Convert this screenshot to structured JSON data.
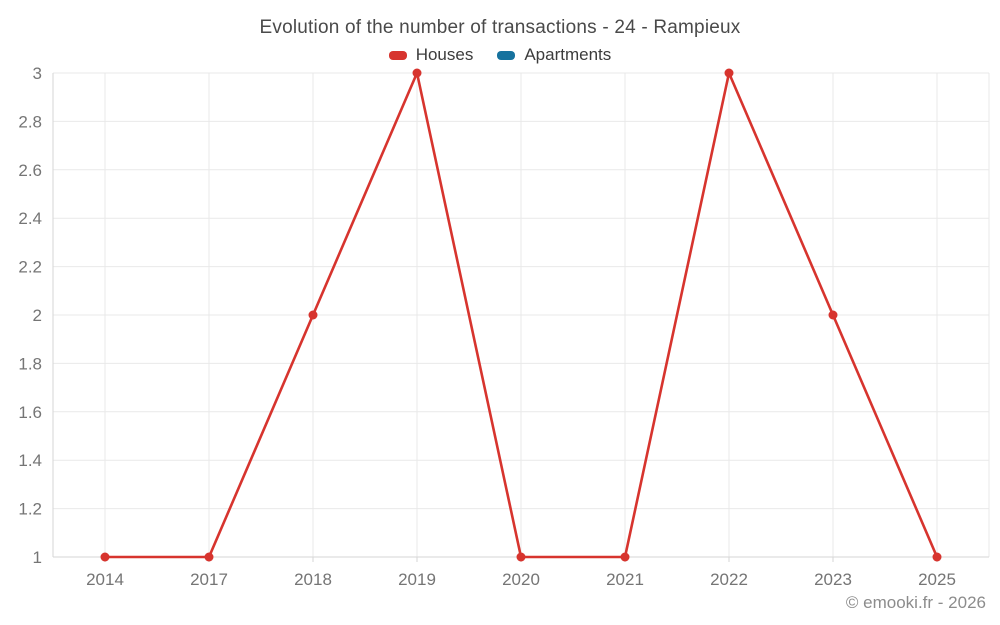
{
  "chart_data": {
    "type": "line",
    "title": "Evolution of the number of transactions - 24 - Rampieux",
    "categories": [
      "2014",
      "2017",
      "2018",
      "2019",
      "2020",
      "2021",
      "2022",
      "2023",
      "2025"
    ],
    "series": [
      {
        "name": "Houses",
        "color": "#d7342e",
        "values": [
          1,
          1,
          2,
          3,
          1,
          1,
          3,
          2,
          1
        ]
      },
      {
        "name": "Apartments",
        "color": "#16729e",
        "values": []
      }
    ],
    "ylim": [
      1,
      3
    ],
    "ytick_step": 0.2,
    "ytick_labels": [
      "1",
      "1.2",
      "1.4",
      "1.6",
      "1.8",
      "2",
      "2.2",
      "2.4",
      "2.6",
      "2.8",
      "3"
    ],
    "xlabel": "",
    "ylabel": "",
    "grid": true,
    "legend_position": "top"
  },
  "footer": {
    "credit": "© emooki.fr - 2026"
  },
  "theme": {
    "background": "#ffffff",
    "grid_color": "#e9e9e9",
    "axis_color": "#d6d6d6",
    "tick_color": "#d6d6d6",
    "tick_label_color": "#757575",
    "title_color": "#4a4a4a",
    "legend_label_color": "#3c3c3c",
    "footer_color": "#8c8c8c"
  }
}
